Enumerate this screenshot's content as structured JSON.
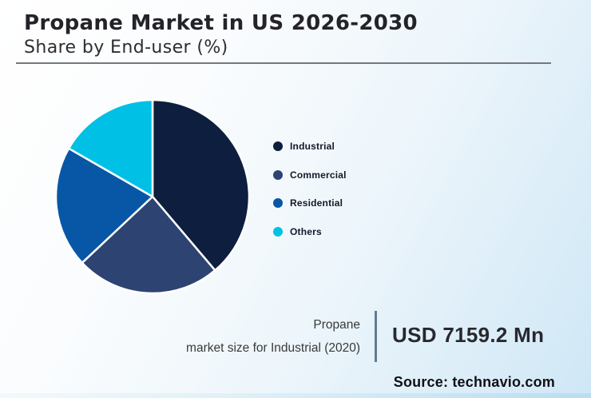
{
  "header": {
    "title": "Propane Market in US 2026-2030",
    "subtitle": "Share by End-user (%)"
  },
  "chart_data": {
    "type": "pie",
    "title": "Propane Market in US 2026-2030",
    "subtitle": "Share by End-user (%)",
    "unit": "% share (values estimated from slice angles, no data labels shown)",
    "start_angle_deg": 0,
    "direction": "clockwise",
    "legend_position": "right",
    "slice_border_color": "#ffffff",
    "slices": [
      {
        "label": "Industrial",
        "value_pct": 38.8,
        "color": "#0d1e3e"
      },
      {
        "label": "Commercial",
        "value_pct": 24.2,
        "color": "#2d4372"
      },
      {
        "label": "Residential",
        "value_pct": 20.3,
        "color": "#0857a6"
      },
      {
        "label": "Others",
        "value_pct": 16.7,
        "color": "#00c1e5"
      }
    ]
  },
  "callout": {
    "line1": "Propane",
    "line2": "market size for Industrial (2020)",
    "value": "USD 7159.2 Mn"
  },
  "source": {
    "label": "Source: technavio.com"
  }
}
